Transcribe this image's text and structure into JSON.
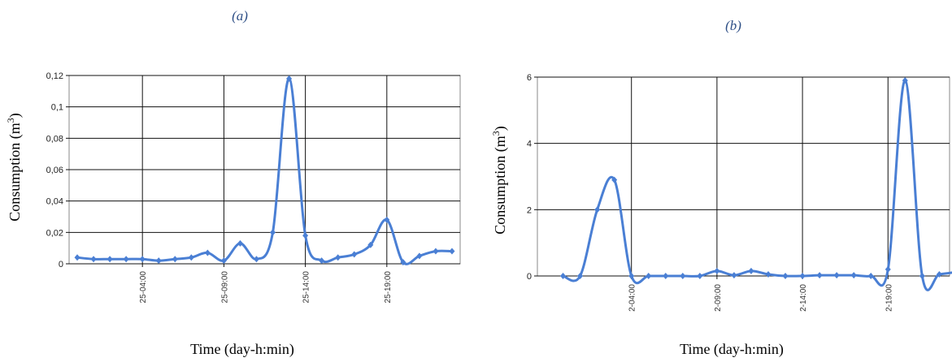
{
  "chart_data": [
    {
      "type": "line",
      "panel_label": "(a)",
      "xlabel": "Time (day-h:min)",
      "ylabel_main": "Consumption (m",
      "ylabel_sup": "3",
      "ylabel_end": ")",
      "ylim": [
        0,
        0.12
      ],
      "yticks": [
        0,
        0.02,
        0.04,
        0.06,
        0.08,
        0.1,
        0.12
      ],
      "ytick_labels": [
        "0",
        "0,02",
        "0,04",
        "0,06",
        "0,08",
        "0,1",
        "0,12"
      ],
      "grid": true,
      "series_color": "#4a7fd4",
      "xticks": [
        {
          "label": "25-04:00",
          "index": 4
        },
        {
          "label": "25-09:00",
          "index": 9
        },
        {
          "label": "25-14:00",
          "index": 14
        },
        {
          "label": "25-19:00",
          "index": 19
        }
      ],
      "xrange": [
        -0.5,
        23.5
      ],
      "values": [
        0.004,
        0.003,
        0.003,
        0.003,
        0.003,
        0.002,
        0.003,
        0.004,
        0.007,
        0.002,
        0.013,
        0.003,
        0.02,
        0.118,
        0.018,
        0.002,
        0.004,
        0.006,
        0.012,
        0.028,
        0.001,
        0.005,
        0.008,
        0.008
      ]
    },
    {
      "type": "line",
      "panel_label": "(b)",
      "xlabel": "Time (day-h:min)",
      "ylabel_main": "Consumption (m",
      "ylabel_sup": "3",
      "ylabel_end": ")",
      "ylim": [
        0,
        6
      ],
      "yticks": [
        0,
        2,
        4,
        6
      ],
      "ytick_labels": [
        "0",
        "2",
        "4",
        "6"
      ],
      "grid": true,
      "series_color": "#4a7fd4",
      "xticks": [
        {
          "label": "2-04:00",
          "index": 4
        },
        {
          "label": "2-09:00",
          "index": 9
        },
        {
          "label": "2-14:00",
          "index": 14
        },
        {
          "label": "2-19:00",
          "index": 19
        }
      ],
      "xrange": [
        -1.5,
        22.6
      ],
      "values": [
        0,
        0,
        2.0,
        2.9,
        0,
        0,
        0,
        0,
        0,
        0.15,
        0.02,
        0.15,
        0.05,
        0,
        0,
        0.02,
        0.02,
        0.02,
        0,
        0.2,
        5.9,
        0,
        0.05,
        0.12
      ]
    }
  ]
}
